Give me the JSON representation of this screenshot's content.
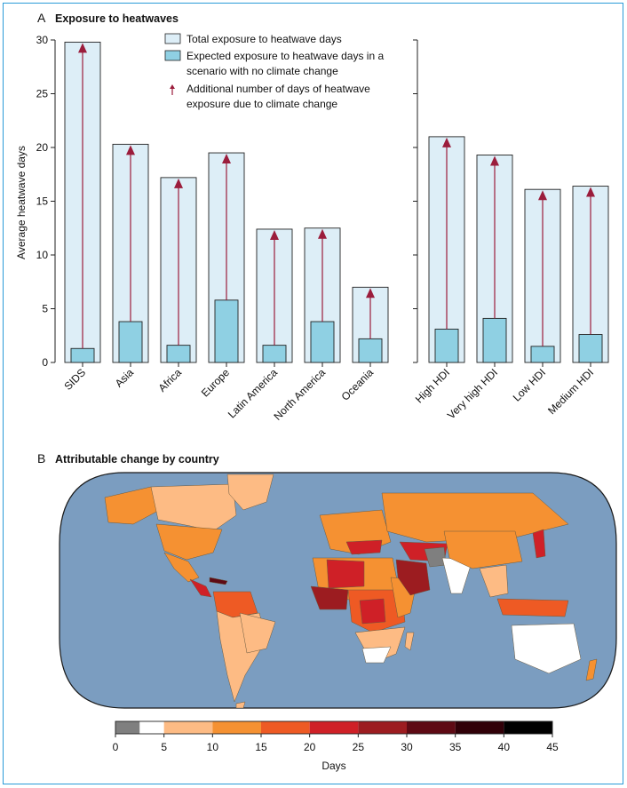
{
  "panel_a": {
    "letter": "A",
    "title": "Exposure to heatwaves",
    "legend": {
      "total": "Total exposure to heatwave days",
      "expected_line1": "Expected exposure to heatwave days in a",
      "expected_line2": "scenario with no climate change",
      "additional_line1": "Additional number of days of heatwave",
      "additional_line2": "exposure due to climate change"
    }
  },
  "panel_b": {
    "letter": "B",
    "title": "Attributable change by country",
    "colorbar": {
      "label": "Days",
      "ticks": [
        "0",
        "5",
        "10",
        "15",
        "20",
        "25",
        "30",
        "35",
        "40",
        "45"
      ],
      "bins": [
        {
          "from": 0,
          "to": 2.5,
          "color": "#7f7f7f"
        },
        {
          "from": 2.5,
          "to": 5,
          "color": "#ffffff"
        },
        {
          "from": 5,
          "to": 10,
          "color": "#fdbb84"
        },
        {
          "from": 10,
          "to": 15,
          "color": "#f59132"
        },
        {
          "from": 15,
          "to": 20,
          "color": "#ee5a24"
        },
        {
          "from": 20,
          "to": 25,
          "color": "#cf2027"
        },
        {
          "from": 25,
          "to": 30,
          "color": "#9c1c20"
        },
        {
          "from": 30,
          "to": 35,
          "color": "#5e0a14"
        },
        {
          "from": 35,
          "to": 40,
          "color": "#300008"
        },
        {
          "from": 40,
          "to": 45,
          "color": "#000000"
        }
      ],
      "range": [
        0,
        45
      ]
    },
    "colors": {
      "ocean": "#7b9dc0",
      "sphere_outline": "#1a1a1a"
    }
  },
  "chart_data": [
    {
      "type": "bar",
      "title": "Exposure to heatwaves",
      "ylabel": "Average heatwave days",
      "ylim": [
        0,
        30
      ],
      "yticks": [
        0,
        5,
        10,
        15,
        20,
        25,
        30
      ],
      "categories": [
        "SIDS",
        "Asia",
        "Africa",
        "Europe",
        "Latin America",
        "North America",
        "Oceania",
        "High HDI",
        "Very high HDI",
        "Low HDI",
        "Medium HDI"
      ],
      "groups": [
        {
          "categories": [
            "SIDS",
            "Asia",
            "Africa",
            "Europe",
            "Latin America",
            "North America",
            "Oceania"
          ]
        },
        {
          "categories": [
            "High HDI",
            "Very high HDI",
            "Low HDI",
            "Medium HDI"
          ]
        }
      ],
      "series": [
        {
          "name": "Total exposure to heatwave days",
          "color": "#ddeef7",
          "values": [
            29.8,
            20.3,
            17.2,
            19.5,
            12.4,
            12.5,
            7.0,
            21.0,
            19.3,
            16.1,
            16.4
          ]
        },
        {
          "name": "Expected exposure to heatwave days in a scenario with no climate change",
          "color": "#8fd0e3",
          "values": [
            1.3,
            3.8,
            1.6,
            5.8,
            1.6,
            3.8,
            2.2,
            3.1,
            4.1,
            1.5,
            2.6
          ]
        }
      ],
      "arrow_color": "#9b1d3c",
      "legend": "top-right"
    }
  ]
}
